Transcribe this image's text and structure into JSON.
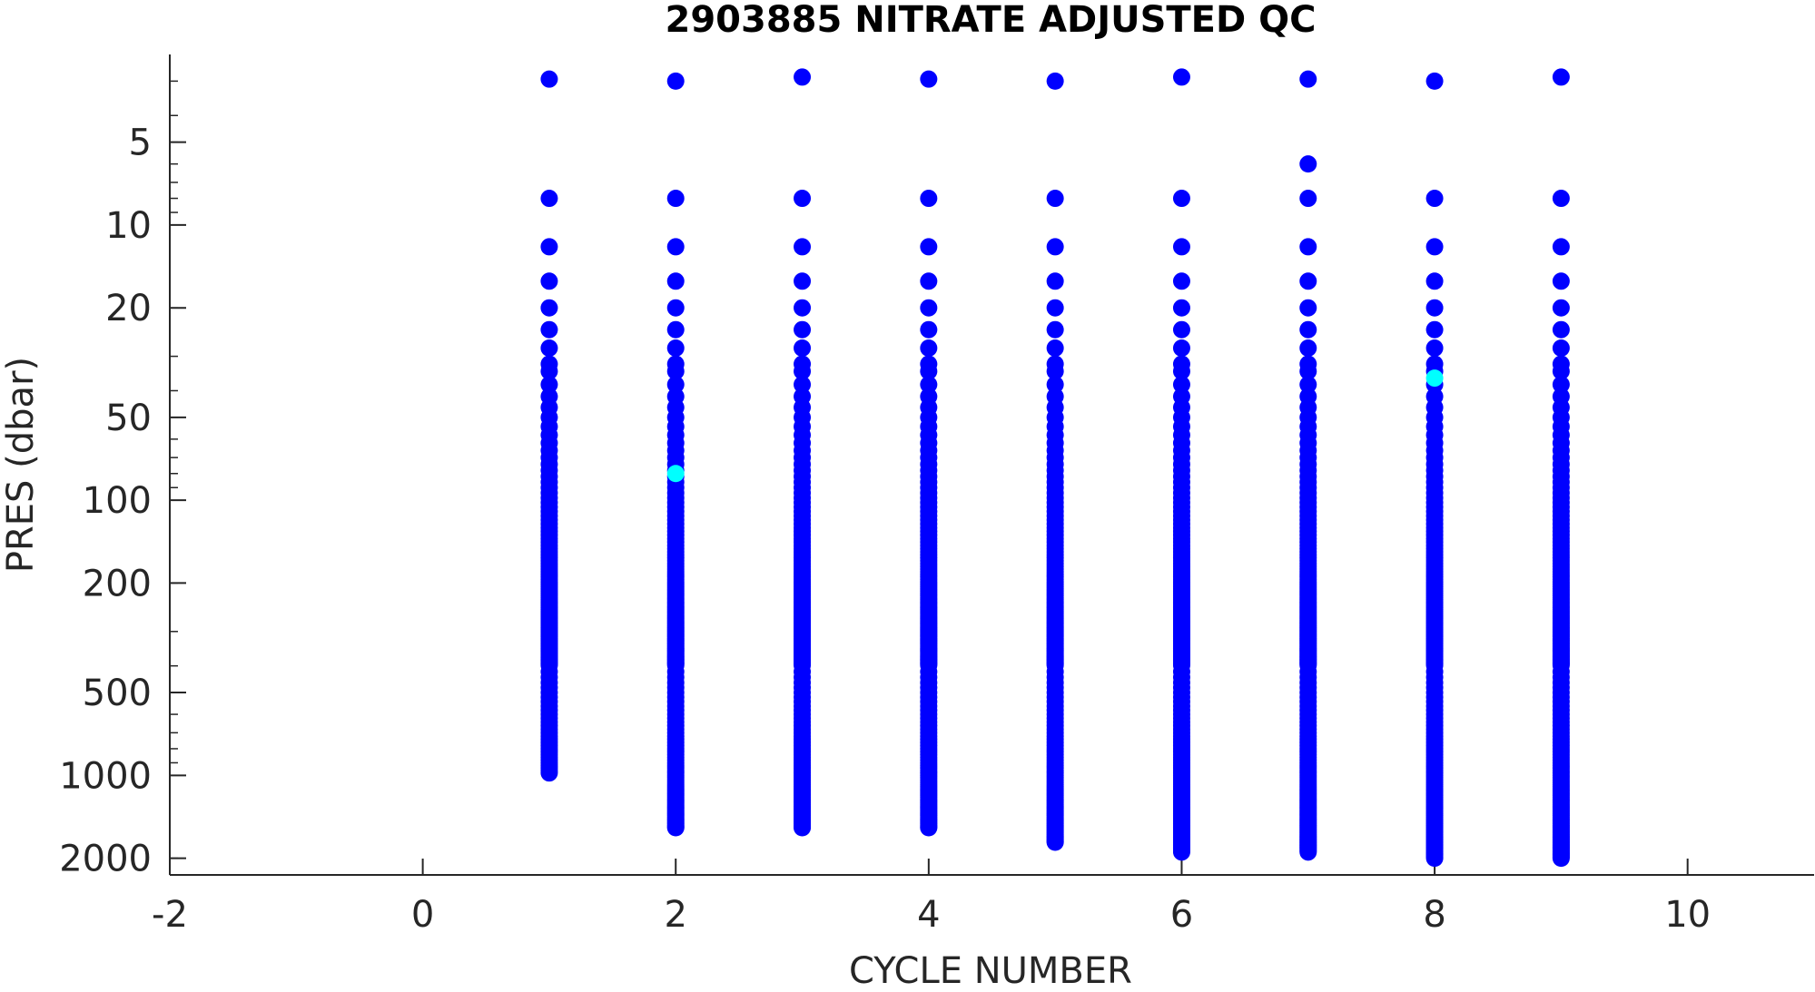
{
  "colors": {
    "background": "#ffffff",
    "axis": "#262626",
    "qc_good": "#0000ff",
    "qc_flagged": "#00ffff"
  },
  "chart_data": {
    "type": "scatter",
    "title": "2903885  NITRATE ADJUSTED QC",
    "xlabel": "CYCLE NUMBER",
    "ylabel": "PRES (dbar)",
    "xlim": [
      -2,
      11
    ],
    "ylim": [
      2.4,
      2300
    ],
    "y_scale": "log",
    "y_reversed": true,
    "grid": false,
    "legend": "none",
    "x_ticks": [
      -2,
      0,
      2,
      4,
      6,
      8,
      10
    ],
    "x_tick_labels": [
      "-2",
      "0",
      "2",
      "4",
      "6",
      "8",
      "10"
    ],
    "y_ticks": [
      5,
      10,
      20,
      50,
      100,
      200,
      500,
      1000,
      2000
    ],
    "y_tick_labels": [
      "5",
      "10",
      "20",
      "50",
      "100",
      "200",
      "500",
      "1000",
      "2000"
    ],
    "series": [
      {
        "color": "#0000ff",
        "profiles": [
          {
            "cycle": 1,
            "max_pres": 980
          },
          {
            "cycle": 2,
            "max_pres": 1550
          },
          {
            "cycle": 3,
            "max_pres": 1550
          },
          {
            "cycle": 4,
            "max_pres": 1550
          },
          {
            "cycle": 5,
            "max_pres": 1750
          },
          {
            "cycle": 6,
            "max_pres": 1900
          },
          {
            "cycle": 7,
            "max_pres": 1900
          },
          {
            "cycle": 8,
            "max_pres": 2000
          },
          {
            "cycle": 9,
            "max_pres": 2000
          }
        ]
      },
      {
        "color": "#00ffff",
        "points": [
          {
            "x": 2,
            "y": 80
          },
          {
            "x": 8,
            "y": 36
          }
        ]
      }
    ]
  }
}
